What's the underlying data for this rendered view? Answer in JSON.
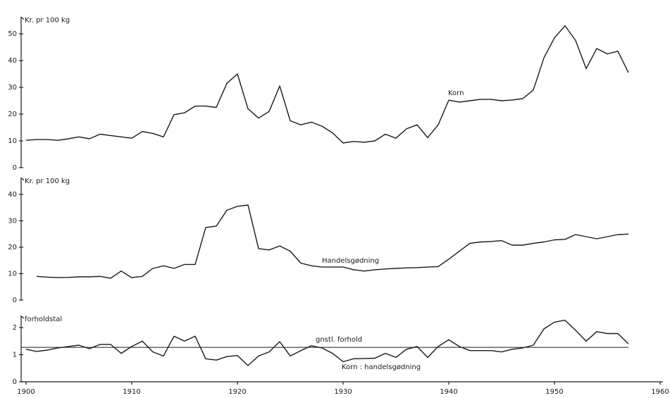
{
  "chart_data": [
    {
      "type": "line",
      "ylabel": "Kr. pr 100 kg",
      "xlim": [
        1900,
        1960
      ],
      "ylim": [
        0,
        57
      ],
      "yticks": [
        0,
        10,
        20,
        30,
        40,
        50
      ],
      "series": [
        {
          "name": "Korn",
          "color": "#1a1a1a",
          "x": [
            1900,
            1901,
            1902,
            1903,
            1904,
            1905,
            1906,
            1907,
            1908,
            1909,
            1910,
            1911,
            1912,
            1913,
            1914,
            1915,
            1916,
            1917,
            1918,
            1919,
            1920,
            1921,
            1922,
            1923,
            1924,
            1925,
            1926,
            1927,
            1928,
            1929,
            1930,
            1931,
            1932,
            1933,
            1934,
            1935,
            1936,
            1937,
            1938,
            1939,
            1940,
            1941,
            1942,
            1943,
            1944,
            1945,
            1946,
            1947,
            1948,
            1949,
            1950,
            1951,
            1952,
            1953,
            1954,
            1955,
            1956,
            1957
          ],
          "values": [
            10.2,
            10.5,
            10.5,
            10.2,
            10.8,
            11.5,
            10.8,
            12.5,
            12,
            11.5,
            11,
            13.5,
            12.8,
            11.5,
            19.8,
            20.5,
            23,
            23,
            22.5,
            31.5,
            35,
            22,
            18.5,
            21,
            30.5,
            17.5,
            16,
            17,
            15.5,
            13,
            9.2,
            9.8,
            9.5,
            10,
            12.5,
            11,
            14.5,
            16,
            11.2,
            16,
            25.2,
            24.5,
            25,
            25.5,
            25.5,
            25,
            25.3,
            25.8,
            29,
            41,
            48.5,
            53,
            47.5,
            37,
            44.5,
            42.5,
            43.5,
            35.5
          ]
        }
      ]
    },
    {
      "type": "line",
      "ylabel": "Kr. pr 100 kg",
      "xlim": [
        1900,
        1960
      ],
      "ylim": [
        0,
        47
      ],
      "yticks": [
        0,
        10,
        20,
        30,
        40
      ],
      "series": [
        {
          "name": "Handelsgødning",
          "color": "#1a1a1a",
          "x": [
            1901,
            1902,
            1903,
            1904,
            1905,
            1906,
            1907,
            1908,
            1909,
            1910,
            1911,
            1912,
            1913,
            1914,
            1915,
            1916,
            1917,
            1918,
            1919,
            1920,
            1921,
            1922,
            1923,
            1924,
            1925,
            1926,
            1927,
            1928,
            1929,
            1930,
            1931,
            1932,
            1933,
            1934,
            1935,
            1936,
            1937,
            1938,
            1939,
            1940,
            1941,
            1942,
            1943,
            1944,
            1945,
            1946,
            1947,
            1948,
            1949,
            1950,
            1951,
            1952,
            1953,
            1954,
            1955,
            1956,
            1957
          ],
          "values": [
            9,
            8.7,
            8.5,
            8.6,
            8.8,
            8.8,
            9,
            8.3,
            11,
            8.5,
            9,
            12,
            13,
            12,
            13.5,
            13.5,
            27.5,
            28,
            34,
            35.5,
            36,
            19.5,
            19,
            20.5,
            18.5,
            14,
            13,
            12.5,
            12.5,
            12.5,
            11.5,
            11,
            11.5,
            11.8,
            12,
            12.2,
            12.3,
            12.5,
            12.7,
            15.5,
            18.5,
            21.5,
            22,
            22.2,
            22.5,
            20.8,
            20.8,
            21.5,
            22,
            22.8,
            23,
            24.8,
            24,
            23.2,
            24,
            24.8,
            25
          ]
        }
      ]
    },
    {
      "type": "line",
      "ylabel": "forholdstal",
      "xlim": [
        1900,
        1960
      ],
      "xticks": [
        1900,
        1910,
        1920,
        1930,
        1940,
        1950,
        1960
      ],
      "ylim": [
        0,
        2.5
      ],
      "yticks": [
        0,
        1,
        2
      ],
      "reference_line": {
        "label": "gnstl. forhold",
        "value": 1.27
      },
      "series": [
        {
          "name": "Korn : handelsgødning",
          "color": "#1a1a1a",
          "x": [
            1900,
            1901,
            1902,
            1903,
            1904,
            1905,
            1906,
            1907,
            1908,
            1909,
            1910,
            1911,
            1912,
            1913,
            1914,
            1915,
            1916,
            1917,
            1918,
            1919,
            1920,
            1921,
            1922,
            1923,
            1924,
            1925,
            1926,
            1927,
            1928,
            1929,
            1930,
            1931,
            1932,
            1933,
            1934,
            1935,
            1936,
            1937,
            1938,
            1939,
            1940,
            1941,
            1942,
            1943,
            1944,
            1945,
            1946,
            1947,
            1948,
            1949,
            1950,
            1951,
            1952,
            1953,
            1954,
            1955,
            1956,
            1957
          ],
          "values": [
            1.2,
            1.12,
            1.17,
            1.25,
            1.3,
            1.35,
            1.22,
            1.38,
            1.38,
            1.05,
            1.3,
            1.5,
            1.1,
            0.95,
            1.68,
            1.5,
            1.68,
            0.85,
            0.8,
            0.93,
            0.97,
            0.6,
            0.95,
            1.1,
            1.48,
            0.95,
            1.15,
            1.33,
            1.25,
            1.05,
            0.74,
            0.85,
            0.86,
            0.87,
            1.05,
            0.9,
            1.2,
            1.3,
            0.9,
            1.3,
            1.55,
            1.3,
            1.15,
            1.15,
            1.15,
            1.1,
            1.2,
            1.25,
            1.35,
            1.95,
            2.2,
            2.27,
            1.9,
            1.5,
            1.85,
            1.78,
            1.78,
            1.4
          ]
        }
      ]
    }
  ]
}
